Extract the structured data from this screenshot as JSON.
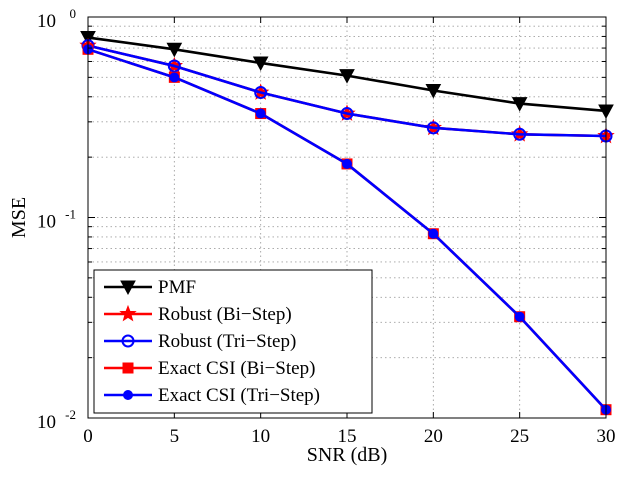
{
  "chart_data": {
    "type": "line",
    "title": "",
    "xlabel": "SNR (dB)",
    "ylabel": "MSE",
    "y_scale": "log",
    "xlim": [
      0,
      30
    ],
    "ylim": [
      0.01,
      1
    ],
    "grid": true,
    "x_ticks": [
      "0",
      "5",
      "10",
      "15",
      "20",
      "25",
      "30"
    ],
    "y_ticks": [
      {
        "base": "10",
        "exp": "-2"
      },
      {
        "base": "10",
        "exp": "-1"
      },
      {
        "base": "10",
        "exp": "0"
      }
    ],
    "legend_position": "bottom-left",
    "x": [
      0,
      5,
      10,
      15,
      20,
      25,
      30
    ],
    "series": [
      {
        "name": "PMF",
        "color": "#000000",
        "marker": "triangle-down",
        "values": [
          0.79,
          0.69,
          0.59,
          0.51,
          0.43,
          0.37,
          0.34
        ]
      },
      {
        "name": "Robust (Bi−Step)",
        "color": "#ff0000",
        "marker": "star",
        "values": [
          0.72,
          0.57,
          0.42,
          0.33,
          0.28,
          0.26,
          0.255
        ]
      },
      {
        "name": "Robust (Tri−Step)",
        "color": "#0000ff",
        "marker": "circle-open",
        "values": [
          0.72,
          0.57,
          0.42,
          0.33,
          0.28,
          0.26,
          0.255
        ]
      },
      {
        "name": "Exact CSI (Bi−Step)",
        "color": "#ff0000",
        "marker": "square",
        "values": [
          0.69,
          0.5,
          0.33,
          0.185,
          0.083,
          0.032,
          0.011
        ]
      },
      {
        "name": "Exact CSI (Tri−Step)",
        "color": "#0000ff",
        "marker": "circle-filled",
        "values": [
          0.69,
          0.5,
          0.33,
          0.185,
          0.083,
          0.032,
          0.011
        ]
      }
    ]
  }
}
